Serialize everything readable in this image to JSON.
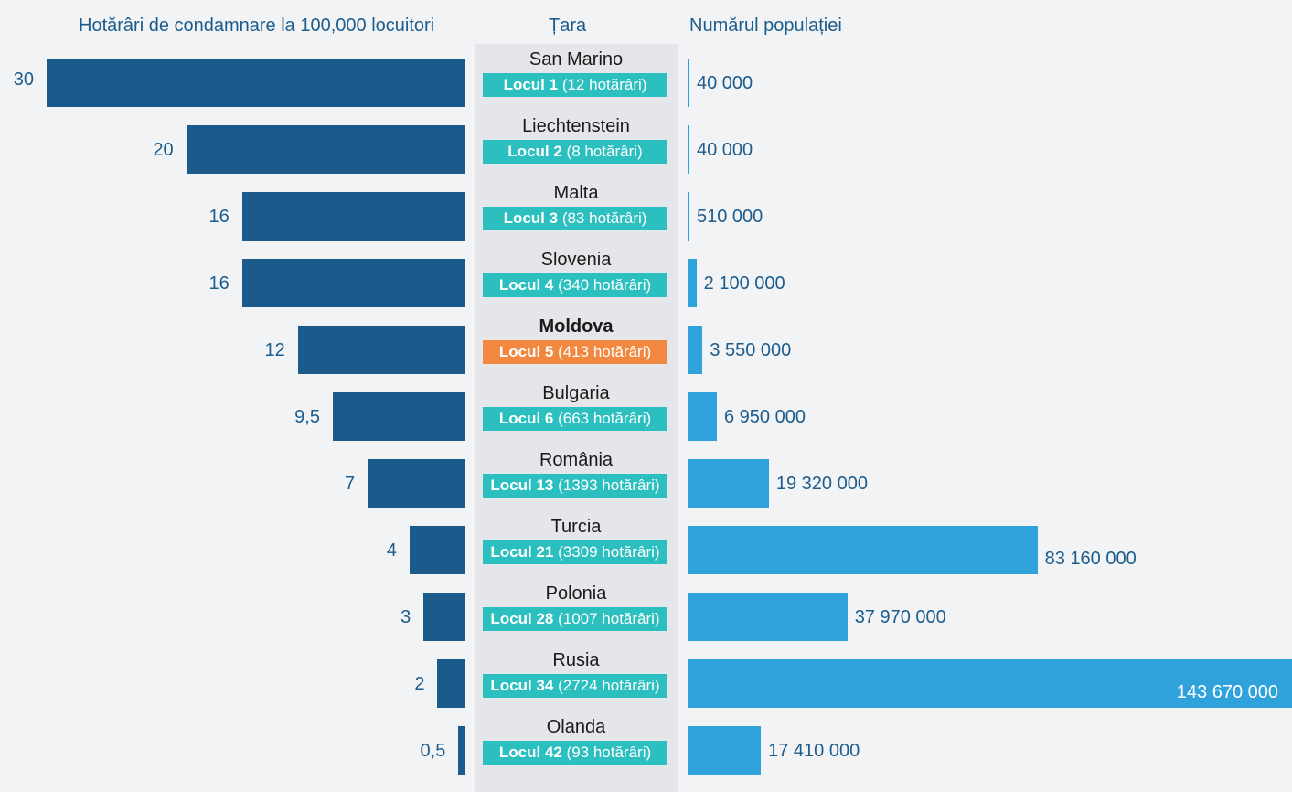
{
  "headers": {
    "left": "Hotărâri de condamnare la 100,000 locuitori",
    "middle": "Țara",
    "right": "Numărul populației"
  },
  "colors": {
    "left_bar": "#1a5b8c",
    "right_bar": "#2fa2db",
    "rank_badge": "#2bbfbf",
    "rank_badge_highlight": "#f28740",
    "middle_column": "#e4e6e9"
  },
  "chart_data": {
    "type": "bar",
    "categories": [
      "San Marino",
      "Liechtenstein",
      "Malta",
      "Slovenia",
      "Moldova",
      "Bulgaria",
      "România",
      "Turcia",
      "Polonia",
      "Rusia",
      "Olanda"
    ],
    "highlight": "Moldova",
    "series": [
      {
        "name": "Hotărâri de condamnare la 100,000 locuitori",
        "values": [
          30,
          20,
          16,
          16,
          12,
          9.5,
          7,
          4,
          3,
          2,
          0.5
        ],
        "labels": [
          "30",
          "20",
          "16",
          "16",
          "12",
          "9,5",
          "7",
          "4",
          "3",
          "2",
          "0,5"
        ]
      },
      {
        "name": "Numărul populației",
        "values": [
          40000,
          40000,
          510000,
          2100000,
          3550000,
          6950000,
          19320000,
          83160000,
          37970000,
          143670000,
          17410000
        ],
        "labels": [
          "40 000",
          "40 000",
          "510 000",
          "2 100 000",
          "3 550 000",
          "6 950 000",
          "19 320 000",
          "83 160 000",
          "37 970 000",
          "143 670 000",
          "17 410 000"
        ]
      }
    ],
    "ranks": [
      {
        "rank": "Locul 1",
        "detail": "(12 hotărâri)"
      },
      {
        "rank": "Locul 2",
        "detail": "(8 hotărâri)"
      },
      {
        "rank": "Locul 3",
        "detail": "(83 hotărâri)"
      },
      {
        "rank": "Locul 4",
        "detail": "(340 hotărâri)"
      },
      {
        "rank": "Locul 5",
        "detail": "(413 hotărâri)"
      },
      {
        "rank": "Locul 6",
        "detail": "(663 hotărâri)"
      },
      {
        "rank": "Locul 13",
        "detail": "(1393 hotărâri)"
      },
      {
        "rank": "Locul  21",
        "detail": "(3309 hotărâri)"
      },
      {
        "rank": "Locul 28",
        "detail": "(1007 hotărâri)"
      },
      {
        "rank": "Locul  34",
        "detail": "(2724 hotărâri)"
      },
      {
        "rank": "Locul  42",
        "detail": "(93 hotărâri)"
      }
    ]
  }
}
